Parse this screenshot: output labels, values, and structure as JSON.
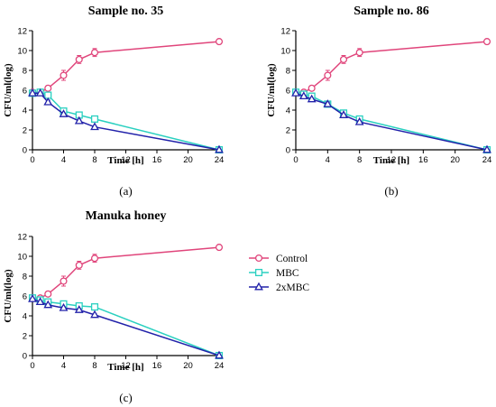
{
  "legend": {
    "items": [
      {
        "name": "Control",
        "color": "#e0457b",
        "marker": "circle"
      },
      {
        "name": "MBC",
        "color": "#2ad0c0",
        "marker": "square"
      },
      {
        "name": "2xMBC",
        "color": "#2222aa",
        "marker": "triangle"
      }
    ]
  },
  "chart_data": [
    {
      "type": "line",
      "panel_label": "(a)",
      "title": "Sample no. 35",
      "xlabel": "Time [h]",
      "ylabel": "CFU/ml(log)",
      "xlim": [
        0,
        24
      ],
      "ylim": [
        0,
        12
      ],
      "xticks": [
        0,
        4,
        8,
        12,
        16,
        20,
        24
      ],
      "yticks": [
        0,
        2,
        4,
        6,
        8,
        10,
        12
      ],
      "x": [
        0,
        1,
        2,
        4,
        6,
        8,
        24
      ],
      "series": [
        {
          "name": "Control",
          "values": [
            5.8,
            5.8,
            6.2,
            7.5,
            9.1,
            9.8,
            10.9
          ],
          "errors": [
            0.2,
            0.2,
            0.2,
            0.5,
            0.4,
            0.4,
            0.1
          ]
        },
        {
          "name": "MBC",
          "values": [
            5.7,
            5.8,
            5.5,
            3.9,
            3.5,
            3.1,
            0.0
          ],
          "errors": [
            0.1,
            0.1,
            0.1,
            0.1,
            0.1,
            0.1,
            0.0
          ]
        },
        {
          "name": "2xMBC",
          "values": [
            5.7,
            5.7,
            4.8,
            3.6,
            2.9,
            2.3,
            0.0
          ],
          "errors": [
            0.1,
            0.1,
            0.2,
            0.1,
            0.1,
            0.1,
            0.0
          ]
        }
      ]
    },
    {
      "type": "line",
      "panel_label": "(b)",
      "title": "Sample no. 86",
      "xlabel": "Time [h]",
      "ylabel": "CFU/ml(log)",
      "xlim": [
        0,
        24
      ],
      "ylim": [
        0,
        12
      ],
      "xticks": [
        0,
        4,
        8,
        12,
        16,
        20,
        24
      ],
      "yticks": [
        0,
        2,
        4,
        6,
        8,
        10,
        12
      ],
      "x": [
        0,
        1,
        2,
        4,
        6,
        8,
        24
      ],
      "series": [
        {
          "name": "Control",
          "values": [
            5.8,
            5.8,
            6.2,
            7.5,
            9.1,
            9.8,
            10.9
          ],
          "errors": [
            0.2,
            0.2,
            0.2,
            0.5,
            0.4,
            0.4,
            0.1
          ]
        },
        {
          "name": "MBC",
          "values": [
            5.8,
            5.6,
            5.4,
            4.6,
            3.7,
            3.1,
            0.0
          ],
          "errors": [
            0.1,
            0.1,
            0.1,
            0.2,
            0.1,
            0.1,
            0.0
          ]
        },
        {
          "name": "2xMBC",
          "values": [
            5.7,
            5.4,
            5.1,
            4.6,
            3.5,
            2.8,
            0.0
          ],
          "errors": [
            0.1,
            0.1,
            0.1,
            0.2,
            0.1,
            0.1,
            0.0
          ]
        }
      ]
    },
    {
      "type": "line",
      "panel_label": "(c)",
      "title": "Manuka honey",
      "xlabel": "Time [h]",
      "ylabel": "CFU/ml(log)",
      "xlim": [
        0,
        24
      ],
      "ylim": [
        0,
        12
      ],
      "xticks": [
        0,
        4,
        8,
        12,
        16,
        20,
        24
      ],
      "yticks": [
        0,
        2,
        4,
        6,
        8,
        10,
        12
      ],
      "x": [
        0,
        1,
        2,
        4,
        6,
        8,
        24
      ],
      "series": [
        {
          "name": "Control",
          "values": [
            5.8,
            5.8,
            6.2,
            7.5,
            9.1,
            9.8,
            10.9
          ],
          "errors": [
            0.2,
            0.2,
            0.2,
            0.5,
            0.4,
            0.4,
            0.1
          ]
        },
        {
          "name": "MBC",
          "values": [
            5.8,
            5.6,
            5.4,
            5.2,
            5.0,
            4.9,
            0.0
          ],
          "errors": [
            0.1,
            0.1,
            0.1,
            0.1,
            0.1,
            0.1,
            0.0
          ]
        },
        {
          "name": "2xMBC",
          "values": [
            5.7,
            5.4,
            5.1,
            4.8,
            4.6,
            4.1,
            0.0
          ],
          "errors": [
            0.1,
            0.1,
            0.1,
            0.1,
            0.1,
            0.1,
            0.0
          ]
        }
      ]
    }
  ]
}
